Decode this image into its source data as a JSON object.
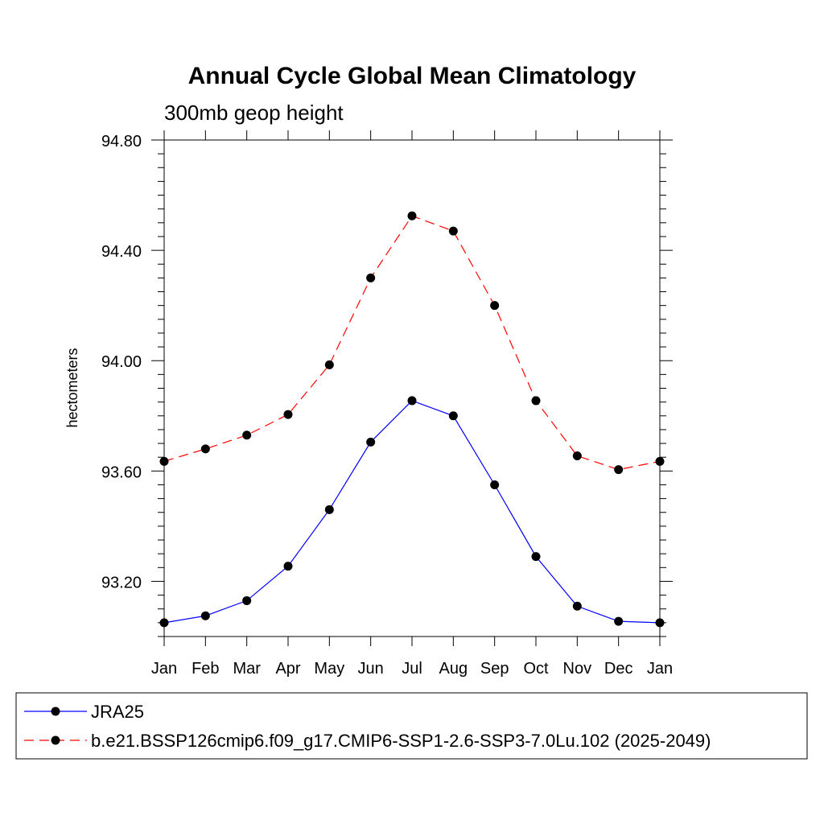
{
  "chart_data": {
    "type": "line",
    "title": "Annual Cycle Global Mean Climatology",
    "subtitle": "300mb geop height",
    "xlabel": "",
    "ylabel": "hectometers",
    "categories": [
      "Jan",
      "Feb",
      "Mar",
      "Apr",
      "May",
      "Jun",
      "Jul",
      "Aug",
      "Sep",
      "Oct",
      "Nov",
      "Dec",
      "Jan"
    ],
    "yticks": [
      "93.20",
      "93.60",
      "94.00",
      "94.40",
      "94.80"
    ],
    "ylim": [
      93.0,
      94.8
    ],
    "grid": false,
    "legend_position": "bottom",
    "series": [
      {
        "name": "JRA25",
        "color": "#0000ff",
        "line_style": "solid",
        "marker": "filled-circle",
        "values": [
          93.05,
          93.075,
          93.13,
          93.255,
          93.46,
          93.705,
          93.855,
          93.8,
          93.55,
          93.29,
          93.11,
          93.055,
          93.05
        ]
      },
      {
        "name": "b.e21.BSSP126cmip6.f09_g17.CMIP6-SSP1-2.6-SSP3-7.0Lu.102 (2025-2049)",
        "color": "#ff0000",
        "line_style": "dashed",
        "marker": "filled-circle",
        "values": [
          93.635,
          93.68,
          93.73,
          93.805,
          93.985,
          94.3,
          94.525,
          94.47,
          94.2,
          93.855,
          93.655,
          93.605,
          93.635
        ]
      }
    ]
  }
}
